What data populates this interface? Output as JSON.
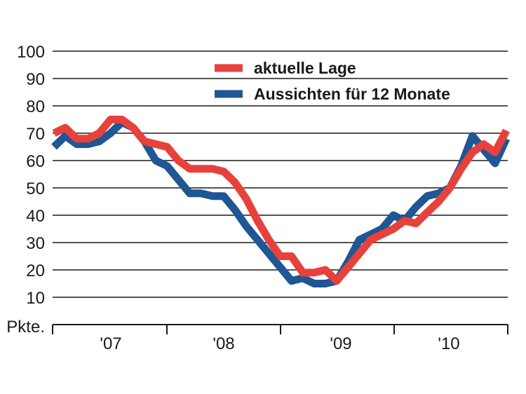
{
  "chart_data": {
    "type": "line",
    "unit_label": "Pkte.",
    "ylim": [
      10,
      100
    ],
    "yticks": [
      100,
      90,
      80,
      70,
      60,
      50,
      40,
      30,
      20,
      10
    ],
    "grid": true,
    "legend_position": "top-center",
    "x_labels": [
      "'07",
      "'08",
      "'09",
      "'10"
    ],
    "x_index_range": [
      0,
      46
    ],
    "series": [
      {
        "name": "aktuelle Lage",
        "color": "#e8413c",
        "values": [
          70,
          72,
          68,
          68,
          70,
          75,
          75,
          72,
          67,
          66,
          65,
          60,
          57,
          57,
          57,
          56,
          52,
          46,
          38,
          31,
          25,
          25,
          19,
          19,
          20,
          16,
          21,
          26,
          31,
          33,
          35,
          38,
          37,
          41,
          45,
          50,
          57,
          63,
          66,
          63,
          71
        ]
      },
      {
        "name": "Aussichten für 12 Monate",
        "color": "#1f5694",
        "values": [
          65,
          69,
          66,
          66,
          67,
          70,
          74,
          72,
          67,
          60,
          58,
          53,
          48,
          48,
          47,
          47,
          42,
          36,
          31,
          26,
          21,
          16,
          17,
          15,
          15,
          16,
          23,
          31,
          33,
          35,
          40,
          38,
          43,
          47,
          48,
          50,
          58,
          69,
          64,
          59,
          68
        ]
      }
    ]
  }
}
